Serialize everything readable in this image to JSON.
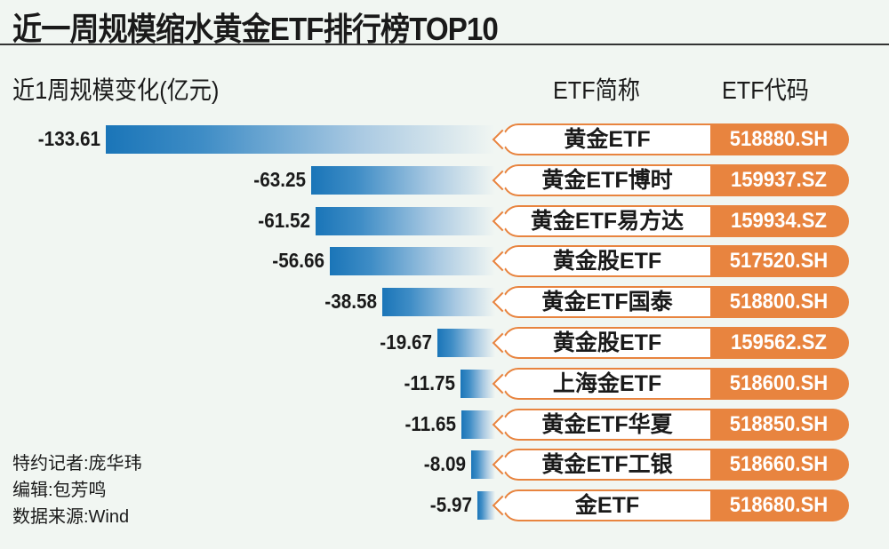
{
  "title": "近一周规模缩水黄金ETF排行榜TOP10",
  "headers": {
    "change": "近1周规模变化(亿元)",
    "name": "ETF简称",
    "code": "ETF代码"
  },
  "colors": {
    "bar": "#1a75b8",
    "code_bg": "#e8843f",
    "background": "#f1f6f2"
  },
  "chart_data": {
    "type": "bar",
    "orientation": "horizontal",
    "unit": "亿元",
    "categories": [
      "黄金ETF",
      "黄金ETF博时",
      "黄金ETF易方达",
      "黄金股ETF",
      "黄金ETF国泰",
      "黄金股ETF",
      "上海金ETF",
      "黄金ETF华夏",
      "黄金ETF工银",
      "金ETF"
    ],
    "codes": [
      "518880.SH",
      "159937.SZ",
      "159934.SZ",
      "517520.SH",
      "518800.SH",
      "159562.SZ",
      "518600.SH",
      "518850.SH",
      "518660.SH",
      "518680.SH"
    ],
    "values": [
      -133.61,
      -63.25,
      -61.52,
      -56.66,
      -38.58,
      -19.67,
      -11.75,
      -11.65,
      -8.09,
      -5.97
    ],
    "labels": [
      "-133.61",
      "-63.25",
      "-61.52",
      "-56.66",
      "-38.58",
      "-19.67",
      "-11.75",
      "-11.65",
      "-8.09",
      "-5.97"
    ]
  },
  "credits": [
    "特约记者:庞华玮",
    "编辑:包芳鸣",
    "数据来源:Wind"
  ]
}
